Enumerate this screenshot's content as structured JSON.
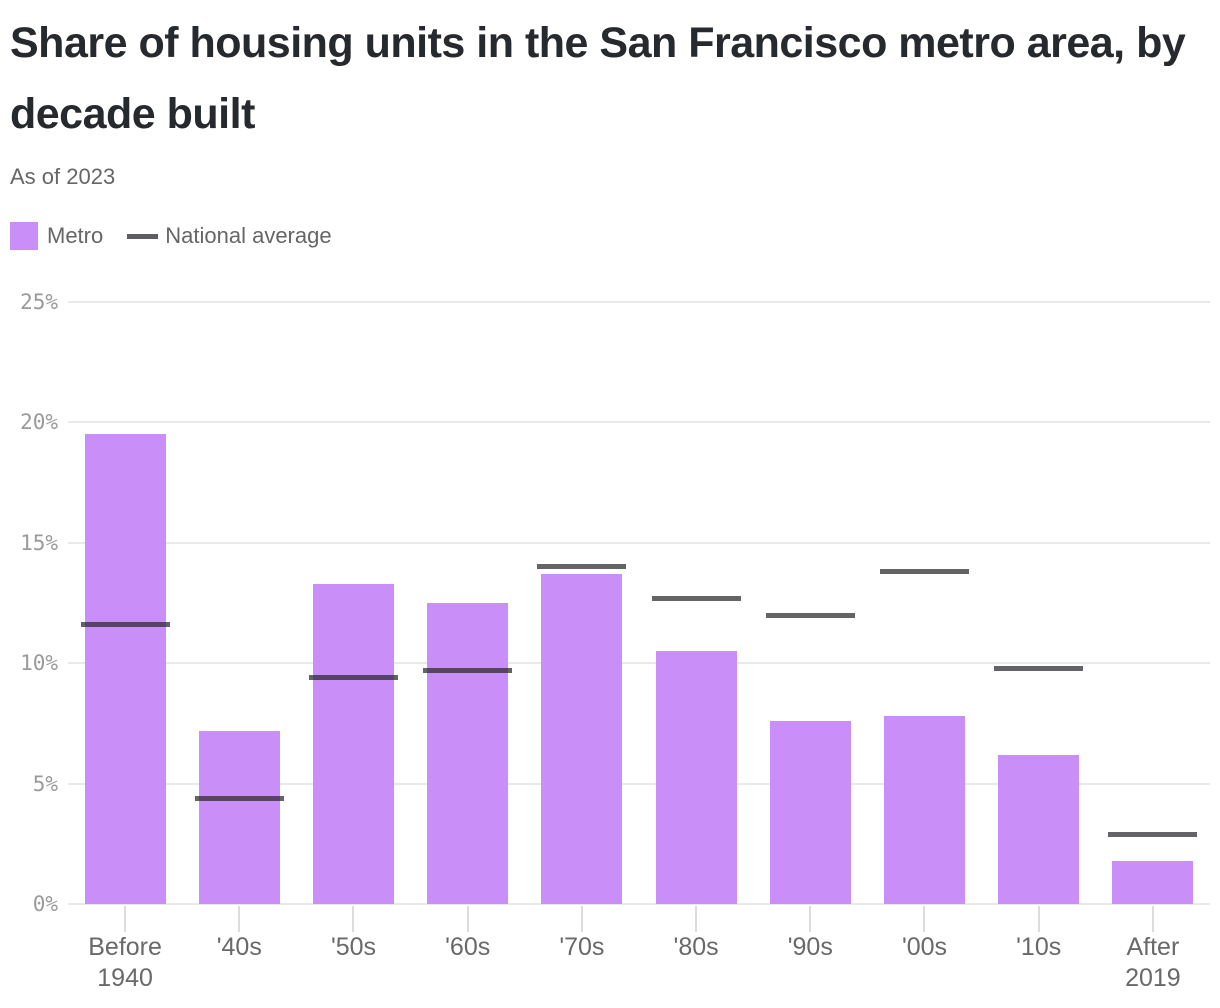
{
  "header": {
    "title": "Share of housing units in the San Francisco metro area, by decade built",
    "subtitle": "As of 2023"
  },
  "legend": {
    "metro_label": "Metro",
    "national_label": "National average"
  },
  "colors": {
    "bar": "#c98ef8",
    "national_line": "#646464",
    "title_text": "#26292e",
    "muted_text": "#666666",
    "y_axis_text": "#9a9a9a",
    "x_axis_text": "#696969",
    "gridline": "#e9e9e9",
    "tick": "#dcdcdc",
    "background": "#ffffff"
  },
  "chart_data": {
    "type": "bar",
    "title": "Share of housing units in the San Francisco metro area, by decade built",
    "subtitle": "As of 2023",
    "categories": [
      "Before 1940",
      "'40s",
      "'50s",
      "'60s",
      "'70s",
      "'80s",
      "'90s",
      "'00s",
      "'10s",
      "After 2019"
    ],
    "series": [
      {
        "name": "Metro",
        "type": "bar",
        "values": [
          19.5,
          7.2,
          13.3,
          12.5,
          13.7,
          10.5,
          7.6,
          7.8,
          6.2,
          1.8
        ]
      },
      {
        "name": "National average",
        "type": "tick-line",
        "values": [
          11.6,
          4.4,
          9.4,
          9.7,
          14.0,
          12.7,
          12.0,
          13.8,
          9.8,
          2.9
        ]
      }
    ],
    "unit": "%",
    "ylim": [
      0,
      25
    ],
    "yticks": [
      0,
      5,
      10,
      15,
      20,
      25
    ],
    "ytick_labels": [
      "0%",
      "5%",
      "10%",
      "15%",
      "20%",
      "25%"
    ],
    "xlabel": "",
    "ylabel": "",
    "grid": true,
    "legend_position": "top-left"
  }
}
